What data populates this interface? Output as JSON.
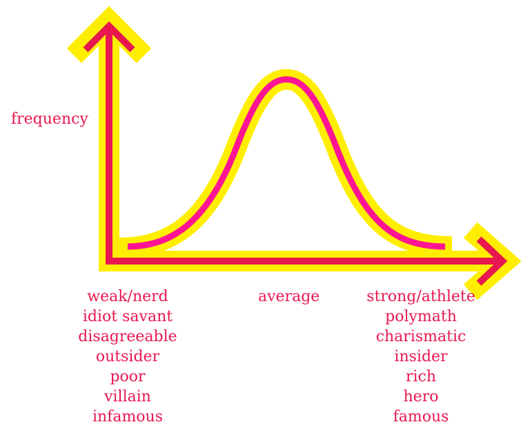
{
  "diagram": {
    "y_axis_label": "frequency",
    "center_label": "average",
    "left_labels": [
      "weak/nerd",
      "idiot savant",
      "disagreeable",
      "outsider",
      "poor",
      "villain",
      "infamous"
    ],
    "right_labels": [
      "strong/athlete",
      "polymath",
      "charismatic",
      "insider",
      "rich",
      "hero",
      "famous"
    ],
    "colors": {
      "outline": "#ffee00",
      "line": "#e8174f",
      "curve": "#ff1493",
      "text": "#e8174f"
    }
  }
}
